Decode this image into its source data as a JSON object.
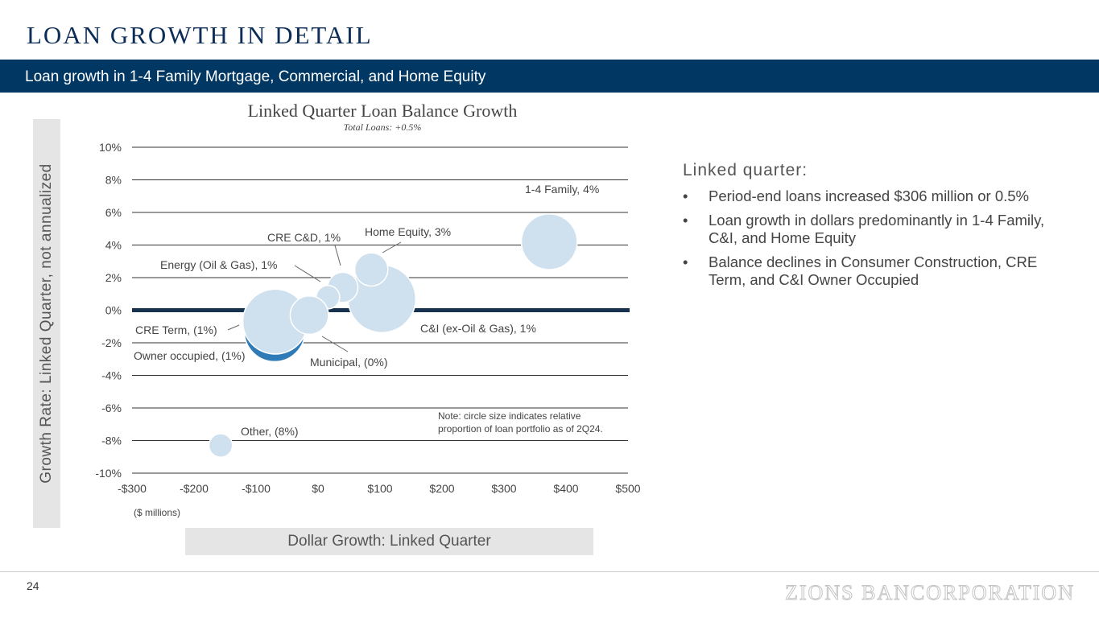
{
  "page": {
    "title": "LOAN GROWTH IN DETAIL",
    "banner": "Loan growth in 1-4 Family Mortgage, Commercial, and Home Equity",
    "page_number": "24",
    "logo_text": "ZIONS BANCORPORATION"
  },
  "axis_panels": {
    "y_label": "Growth Rate: Linked Quarter, not annualized",
    "x_label": "Dollar Growth: Linked Quarter"
  },
  "commentary": {
    "heading": "Linked quarter:",
    "bullet_char": "•",
    "bullets": [
      "Period-end loans increased $306 million or 0.5%",
      "Loan growth in dollars predominantly in 1-4 Family, C&I, and Home Equity",
      "Balance declines in Consumer Construction, CRE Term, and C&I Owner Occupied"
    ]
  },
  "colors": {
    "navy": "#003763",
    "title": "#0b2d57",
    "bubble_fill": "#cfe0ef",
    "bubble_highlight": "#2e7bb7",
    "grid": "#333333",
    "zero_line": "#16324f"
  },
  "chart_data": {
    "type": "scatter",
    "title": "Linked Quarter Loan Balance Growth",
    "subtitle": "Total Loans: +0.5%",
    "xlabel": "($ millions)",
    "xlim": [
      -300,
      500
    ],
    "ylim": [
      -10,
      10
    ],
    "x_ticks": [
      -300,
      -200,
      -100,
      0,
      100,
      200,
      300,
      400,
      500
    ],
    "x_tick_labels": [
      "-$300",
      "-$200",
      "-$100",
      "$0",
      "$100",
      "$200",
      "$300",
      "$400",
      "$500"
    ],
    "y_ticks": [
      10,
      8,
      6,
      4,
      2,
      0,
      -2,
      -4,
      -6,
      -8,
      -10
    ],
    "y_tick_labels": [
      "10%",
      "8%",
      "6%",
      "4%",
      "2%",
      "0%",
      "-2%",
      "-4%",
      "-6%",
      "-8%",
      "-10%"
    ],
    "note": "Note: circle size indicates relative proportion of loan portfolio as of 2Q24.",
    "points": [
      {
        "name": "Owner occupied",
        "label": "Owner occupied, (1%)",
        "x": -70,
        "y": -1.3,
        "size": 20
      },
      {
        "name": "CRE Term",
        "label": "CRE Term, (1%)",
        "x": -69,
        "y": -0.7,
        "size": 23
      },
      {
        "name": "C&I (ex-Oil & Gas)",
        "label": "C&I (ex-Oil & Gas), 1%",
        "x": 103,
        "y": 0.7,
        "size": 25
      },
      {
        "name": "1-4 Family",
        "label": "1-4 Family, 4%",
        "x": 373,
        "y": 4.2,
        "size": 17
      },
      {
        "name": "CRE C&D",
        "label": "CRE C&D, 1%",
        "x": 40,
        "y": 1.4,
        "size": 5
      },
      {
        "name": "Energy (Oil & Gas)",
        "label": "Energy (Oil & Gas), 1%",
        "x": 16,
        "y": 0.8,
        "size": 3
      },
      {
        "name": "Home Equity",
        "label": "Home Equity, 3%",
        "x": 86,
        "y": 2.5,
        "size": 6
      },
      {
        "name": "Municipal",
        "label": "Municipal, (0%)",
        "x": -14,
        "y": -0.3,
        "size": 8
      },
      {
        "name": "Other",
        "label": "Other, (8%)",
        "x": -157,
        "y": -8.3,
        "size": 3
      }
    ]
  }
}
